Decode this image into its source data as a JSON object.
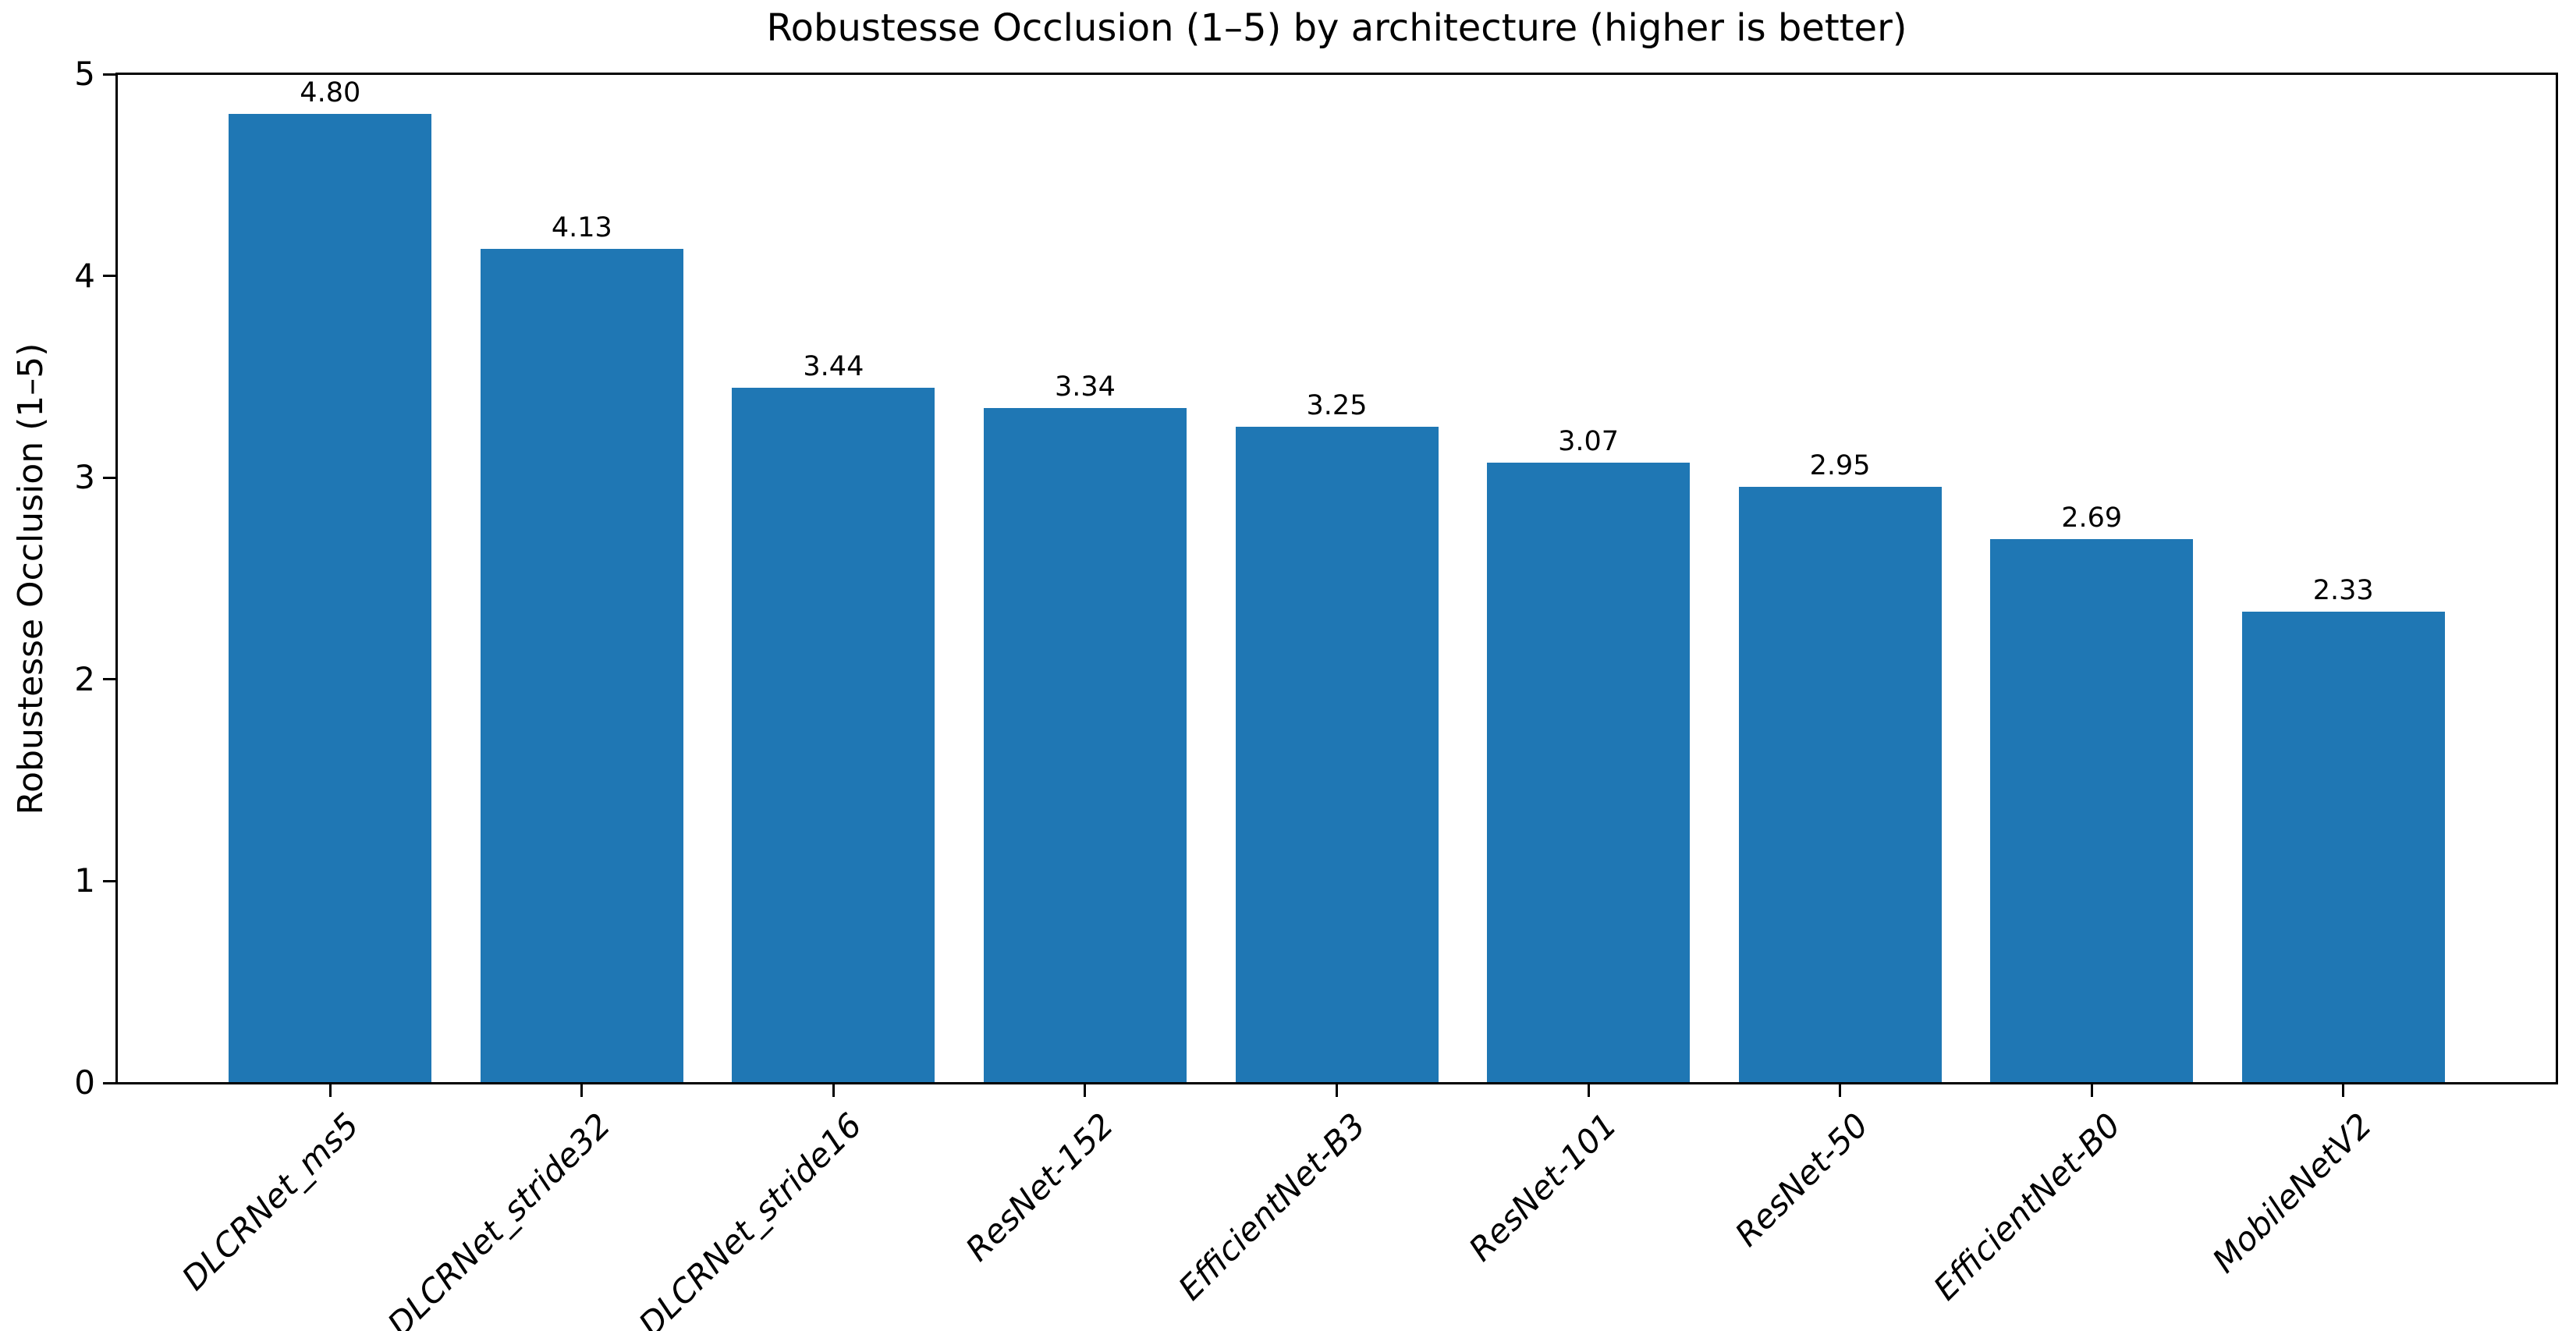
{
  "figure": {
    "background_color": "#ffffff",
    "axis_color": "#000000"
  },
  "chart_data": {
    "type": "bar",
    "title": "Robustesse Occlusion (1–5) by architecture (higher is better)",
    "xlabel": "",
    "ylabel": "Robustesse Occlusion (1–5)",
    "categories": [
      "DLCRNet_ms5",
      "DLCRNet_stride32",
      "DLCRNet_stride16",
      "ResNet-152",
      "EfficientNet-B3",
      "ResNet-101",
      "ResNet-50",
      "EfficientNet-B0",
      "MobileNetV2"
    ],
    "values": [
      4.8,
      4.13,
      3.44,
      3.34,
      3.25,
      3.07,
      2.95,
      2.69,
      2.33
    ],
    "value_labels": [
      "4.80",
      "4.13",
      "3.44",
      "3.34",
      "3.25",
      "3.07",
      "2.95",
      "2.69",
      "2.33"
    ],
    "yticks": [
      "0",
      "1",
      "2",
      "3",
      "4",
      "5"
    ],
    "ylim": [
      0,
      5
    ],
    "bar_color": "#1f77b4",
    "grid": false,
    "legend_position": "none",
    "xtick_label_rotation": 45,
    "xtick_label_style": "italic"
  }
}
